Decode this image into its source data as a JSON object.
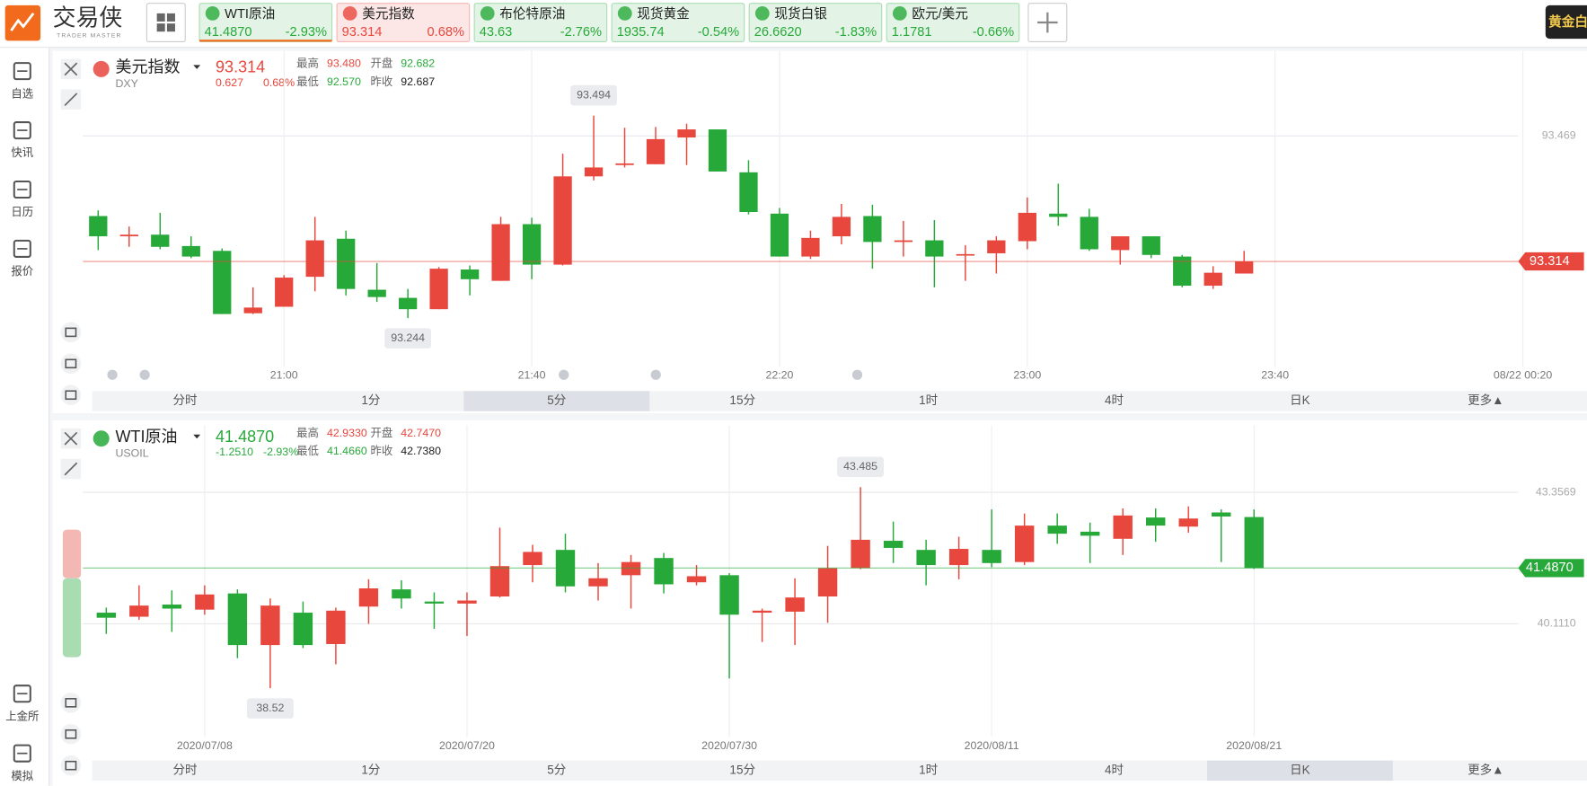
{
  "app": {
    "logo": "交易侠",
    "logo_sub": "TRADER MASTER",
    "banner": "黄金白"
  },
  "tickers": [
    {
      "name": "WTI原油",
      "price": "41.4870",
      "change": "-2.93%",
      "color": "#27a93a"
    },
    {
      "name": "美元指数",
      "price": "93.314",
      "change": "0.68%",
      "color": "#e8473d"
    },
    {
      "name": "布伦特原油",
      "price": "43.63",
      "change": "-2.76%",
      "color": "#27a93a"
    },
    {
      "name": "现货黄金",
      "price": "1935.74",
      "change": "-0.54%",
      "color": "#27a93a"
    },
    {
      "name": "现货白银",
      "price": "26.6620",
      "change": "-1.83%",
      "color": "#27a93a"
    },
    {
      "name": "欧元/美元",
      "price": "1.1781",
      "change": "-0.66%",
      "color": "#27a93a"
    }
  ],
  "active_tab": 0,
  "sidebar": {
    "top": [
      "自选",
      "快讯",
      "日历",
      "报价"
    ],
    "bottom": [
      "上金所",
      "模拟"
    ]
  },
  "timeframes": [
    "分时",
    "1分",
    "5分",
    "15分",
    "1时",
    "4时",
    "日K",
    "更多▲"
  ],
  "panels": [
    {
      "symbol": "美元指数",
      "code": "DXY",
      "price": "93.314",
      "change": "0.627",
      "change_pct": "0.68%",
      "color": "#e8473d",
      "active_timeframe": 2,
      "stats": [
        {
          "label": "最高",
          "value": "93.480",
          "color": "#e8473d"
        },
        {
          "label": "开盘",
          "value": "92.682",
          "color": "#27a93a"
        },
        {
          "label": "最低",
          "value": "92.570",
          "color": "#27a93a"
        },
        {
          "label": "昨收",
          "value": "92.687",
          "color": "#222222"
        }
      ],
      "chart": {
        "type": "candlestick",
        "up_color": "#e8473d",
        "down_color": "#27a93a",
        "categories": [
          null,
          null,
          null,
          null,
          null,
          null,
          "21:00",
          null,
          null,
          null,
          null,
          null,
          null,
          null,
          "21:40",
          null,
          null,
          null,
          null,
          null,
          null,
          null,
          "22:20",
          null,
          null,
          null,
          null,
          null,
          null,
          null,
          "23:00",
          null,
          null,
          null,
          null,
          null,
          null,
          null,
          "23:40",
          null,
          null,
          null,
          null,
          null,
          null,
          null,
          "08/22 00:20"
        ],
        "open": [
          93.37,
          93.345,
          93.347,
          93.333,
          93.327,
          93.25,
          93.258,
          93.295,
          93.342,
          93.279,
          93.269,
          93.255,
          93.304,
          93.29,
          93.36,
          93.31,
          93.419,
          93.433,
          93.434,
          93.467,
          93.477,
          93.424,
          93.373,
          93.32,
          93.345,
          93.37,
          93.338,
          93.34,
          93.322,
          93.324,
          93.339,
          93.373,
          93.369,
          93.328,
          93.345,
          93.32,
          93.284,
          93.299,
          null,
          null,
          null,
          null,
          null,
          null,
          null,
          null,
          null
        ],
        "high": [
          93.377,
          93.357,
          93.374,
          93.345,
          93.33,
          93.282,
          93.297,
          93.369,
          93.352,
          93.312,
          93.28,
          93.307,
          93.309,
          93.369,
          93.368,
          93.447,
          93.494,
          93.479,
          93.48,
          93.484,
          93.477,
          93.439,
          93.38,
          93.352,
          93.385,
          93.384,
          93.364,
          93.365,
          93.334,
          93.345,
          93.393,
          93.41,
          93.379,
          93.345,
          93.345,
          93.322,
          93.308,
          93.327,
          null,
          null,
          null,
          null,
          null,
          null,
          null,
          null,
          null
        ],
        "low": [
          93.328,
          93.332,
          93.329,
          93.318,
          93.249,
          93.249,
          93.258,
          93.277,
          93.272,
          93.264,
          93.244,
          93.255,
          93.272,
          93.29,
          93.292,
          93.309,
          93.414,
          93.43,
          93.434,
          93.433,
          93.425,
          93.372,
          93.32,
          93.317,
          93.335,
          93.305,
          93.32,
          93.282,
          93.29,
          93.299,
          93.329,
          93.358,
          93.327,
          93.31,
          93.318,
          93.282,
          93.28,
          93.299,
          null,
          null,
          null,
          null,
          null,
          null,
          null,
          null,
          null
        ],
        "close": [
          93.345,
          93.347,
          93.332,
          93.32,
          93.249,
          93.257,
          93.294,
          93.34,
          93.28,
          93.27,
          93.255,
          93.305,
          93.292,
          93.36,
          93.31,
          93.419,
          93.43,
          93.435,
          93.465,
          93.477,
          93.425,
          93.375,
          93.32,
          93.343,
          93.369,
          93.338,
          93.34,
          93.32,
          93.323,
          93.34,
          93.374,
          93.369,
          93.329,
          93.345,
          93.322,
          93.284,
          93.3,
          93.314,
          null,
          null,
          null,
          null,
          null,
          null,
          null,
          null,
          null
        ],
        "ylim": [
          93.184,
          93.574
        ],
        "yticks": [
          93.469
        ],
        "high_label": "93.494",
        "low_label": "93.244",
        "last_label": "93.314",
        "last_color": "#e8473d"
      }
    },
    {
      "symbol": "WTI原油",
      "code": "USOIL",
      "price": "41.4870",
      "change": "-1.2510",
      "change_pct": "-2.93%",
      "color": "#27a93a",
      "active_timeframe": 6,
      "stats": [
        {
          "label": "最高",
          "value": "42.9330",
          "color": "#e8473d"
        },
        {
          "label": "开盘",
          "value": "42.7470",
          "color": "#e8473d"
        },
        {
          "label": "最低",
          "value": "41.4660",
          "color": "#27a93a"
        },
        {
          "label": "昨收",
          "value": "42.7380",
          "color": "#222222"
        }
      ],
      "chart": {
        "type": "candlestick",
        "up_color": "#e8473d",
        "down_color": "#27a93a",
        "categories": [
          null,
          null,
          null,
          "2020/07/08",
          null,
          null,
          null,
          null,
          null,
          null,
          null,
          "2020/07/20",
          null,
          null,
          null,
          null,
          null,
          null,
          null,
          "2020/07/30",
          null,
          null,
          null,
          null,
          null,
          null,
          null,
          "2020/08/11",
          null,
          null,
          null,
          null,
          null,
          null,
          null,
          "2020/08/21"
        ],
        "open": [
          40.385,
          40.285,
          40.585,
          40.46,
          40.86,
          39.585,
          40.385,
          39.61,
          40.535,
          40.96,
          40.66,
          40.61,
          40.785,
          41.56,
          41.935,
          41.035,
          41.31,
          41.735,
          41.135,
          41.31,
          40.385,
          40.41,
          40.785,
          41.485,
          42.16,
          41.935,
          41.56,
          41.935,
          41.635,
          42.535,
          42.385,
          42.21,
          42.735,
          42.51,
          42.86,
          42.747
        ],
        "high": [
          40.51,
          41.06,
          40.935,
          41.06,
          40.96,
          40.735,
          40.66,
          40.51,
          41.21,
          41.185,
          40.885,
          40.885,
          42.485,
          42.06,
          42.335,
          41.61,
          41.81,
          41.86,
          41.56,
          41.36,
          40.485,
          41.235,
          42.035,
          43.485,
          42.635,
          42.185,
          42.26,
          42.935,
          42.835,
          42.835,
          42.61,
          42.96,
          42.96,
          43.01,
          42.935,
          42.933
        ],
        "low": [
          39.86,
          40.21,
          39.91,
          40.335,
          39.26,
          38.52,
          39.51,
          39.11,
          40.11,
          40.485,
          39.985,
          39.81,
          40.76,
          41.135,
          40.885,
          40.685,
          40.485,
          40.86,
          41.06,
          38.76,
          39.66,
          39.585,
          40.135,
          41.46,
          41.61,
          41.06,
          41.21,
          41.51,
          41.56,
          42.085,
          41.61,
          41.81,
          42.135,
          42.36,
          41.635,
          41.466
        ],
        "close": [
          40.26,
          40.56,
          40.485,
          40.835,
          39.585,
          40.56,
          39.585,
          40.435,
          40.985,
          40.735,
          40.61,
          40.685,
          41.535,
          41.885,
          41.035,
          41.235,
          41.635,
          41.085,
          41.285,
          40.335,
          40.435,
          40.76,
          41.485,
          42.185,
          41.985,
          41.56,
          41.96,
          41.61,
          42.535,
          42.335,
          42.285,
          42.785,
          42.535,
          42.71,
          42.76,
          41.487
        ],
        "ylim": [
          37.31,
          45.01
        ],
        "yticks": [
          43.3569,
          {
            "value": 40.111,
            "label": "40.1110"
          }
        ],
        "high_label": "43.485",
        "low_label": "38.52",
        "last_label": "41.4870",
        "last_color": "#27a93a"
      }
    }
  ]
}
